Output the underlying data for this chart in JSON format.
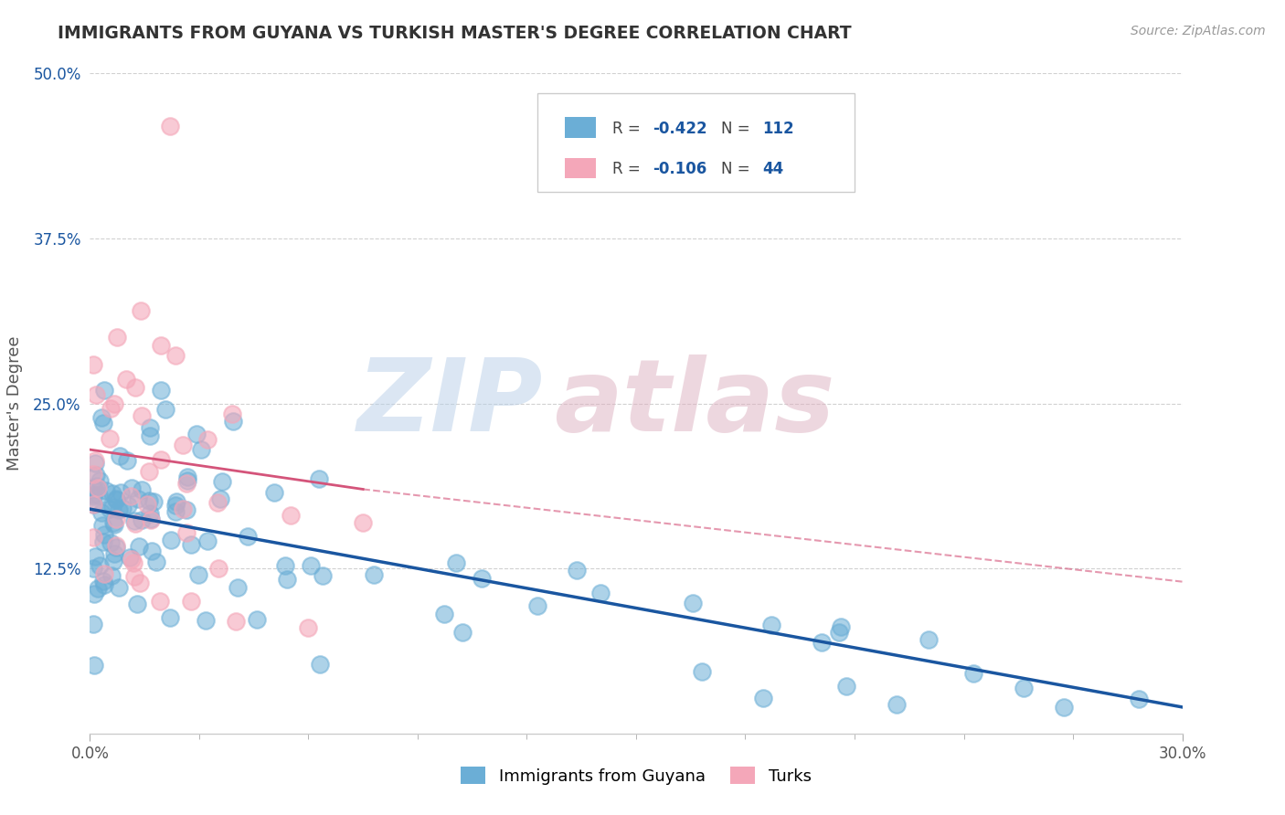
{
  "title": "IMMIGRANTS FROM GUYANA VS TURKISH MASTER'S DEGREE CORRELATION CHART",
  "source": "Source: ZipAtlas.com",
  "ylabel": "Master's Degree",
  "legend_label_1": "Immigrants from Guyana",
  "legend_label_2": "Turks",
  "xlim": [
    0.0,
    0.3
  ],
  "ylim": [
    0.0,
    0.5
  ],
  "color_blue": "#6baed6",
  "color_pink": "#f4a7b9",
  "trendline_blue": "#1a56a0",
  "trendline_pink": "#d4547a",
  "background_color": "#ffffff",
  "grid_color": "#cccccc",
  "title_color": "#333333",
  "axis_label_color": "#555555",
  "source_color": "#999999",
  "watermark_zip_color": "#b8cfe8",
  "watermark_atlas_color": "#ddb0c0",
  "blue_trend": [
    0.0,
    0.3,
    0.17,
    0.02
  ],
  "pink_trend_solid": [
    0.0,
    0.075,
    0.215,
    0.185
  ],
  "pink_trend_dashed": [
    0.075,
    0.3,
    0.185,
    0.115
  ]
}
